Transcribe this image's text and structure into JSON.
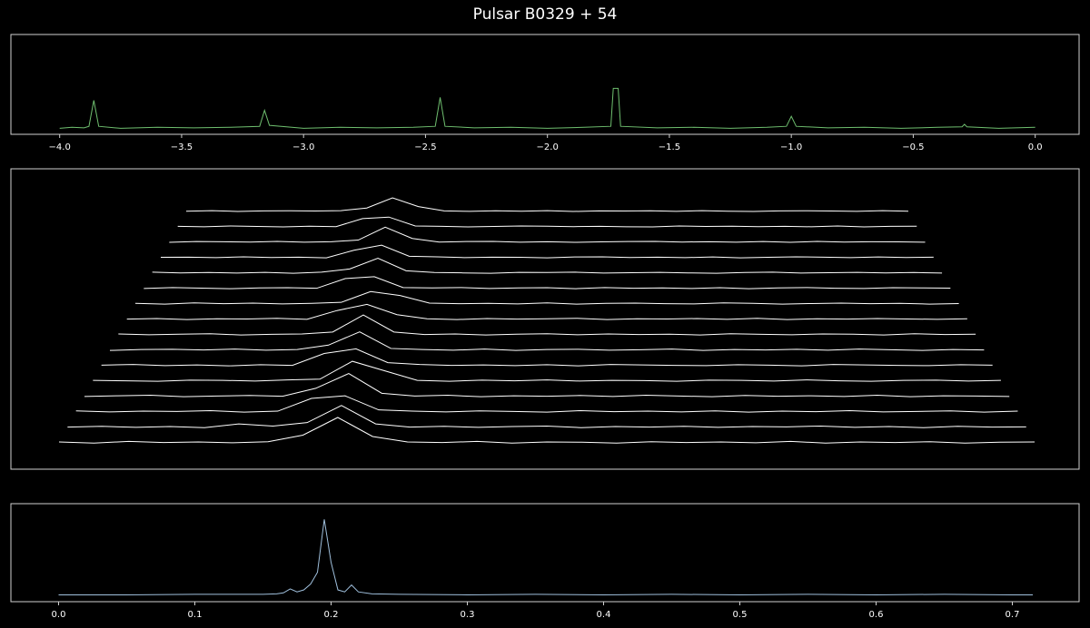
{
  "title": "Pulsar B0329 + 54",
  "chart_data": [
    {
      "type": "line",
      "color": "#6fbf6f",
      "x": [
        -4.0,
        -3.95,
        -3.9,
        -3.88,
        -3.86,
        -3.84,
        -3.75,
        -3.6,
        -3.45,
        -3.3,
        -3.18,
        -3.16,
        -3.14,
        -3.0,
        -2.85,
        -2.7,
        -2.55,
        -2.46,
        -2.44,
        -2.42,
        -2.3,
        -2.15,
        -2.0,
        -1.85,
        -1.74,
        -1.73,
        -1.71,
        -1.7,
        -1.55,
        -1.4,
        -1.25,
        -1.1,
        -1.02,
        -1.0,
        -0.98,
        -0.85,
        -0.7,
        -0.55,
        -0.4,
        -0.3,
        -0.29,
        -0.28,
        -0.15,
        0.0
      ],
      "values": [
        0.06,
        0.07,
        0.065,
        0.08,
        0.34,
        0.08,
        0.06,
        0.07,
        0.065,
        0.07,
        0.08,
        0.24,
        0.09,
        0.06,
        0.07,
        0.065,
        0.07,
        0.08,
        0.37,
        0.08,
        0.065,
        0.07,
        0.06,
        0.07,
        0.08,
        0.46,
        0.46,
        0.08,
        0.065,
        0.07,
        0.06,
        0.07,
        0.08,
        0.18,
        0.08,
        0.065,
        0.07,
        0.06,
        0.07,
        0.075,
        0.1,
        0.075,
        0.06,
        0.07
      ],
      "xlim": [
        -4.2,
        0.18
      ],
      "ylim": [
        0,
        1
      ],
      "xticks": [
        {
          "value": -4.0,
          "label": "−4.0"
        },
        {
          "value": -3.5,
          "label": "−3.5"
        },
        {
          "value": -3.0,
          "label": "−3.0"
        },
        {
          "value": -2.5,
          "label": "−2.5"
        },
        {
          "value": -2.0,
          "label": "−2.0"
        },
        {
          "value": -1.5,
          "label": "−1.5"
        },
        {
          "value": -1.0,
          "label": "−1.0"
        },
        {
          "value": -0.5,
          "label": "−0.5"
        },
        {
          "value": 0.0,
          "label": "0.0"
        }
      ]
    },
    {
      "type": "ridgeline",
      "color": "#ffffff",
      "xlim": [
        0,
        0.7
      ],
      "x": [
        0,
        0.025,
        0.05,
        0.075,
        0.1,
        0.125,
        0.15,
        0.175,
        0.2,
        0.225,
        0.25,
        0.275,
        0.3,
        0.325,
        0.35,
        0.375,
        0.4,
        0.425,
        0.45,
        0.475,
        0.5,
        0.525,
        0.55,
        0.575,
        0.6,
        0.625,
        0.65,
        0.675,
        0.7
      ],
      "series": [
        {
          "values": [
            0.1,
            0.06,
            0.12,
            0.08,
            0.1,
            0.07,
            0.11,
            0.35,
            1.0,
            0.3,
            0.1,
            0.08,
            0.12,
            0.06,
            0.1,
            0.09,
            0.06,
            0.11,
            0.08,
            0.1,
            0.07,
            0.12,
            0.06,
            0.1,
            0.08,
            0.11,
            0.06,
            0.09,
            0.1
          ]
        },
        {
          "values": [
            0.08,
            0.11,
            0.07,
            0.1,
            0.06,
            0.2,
            0.12,
            0.25,
            0.9,
            0.2,
            0.08,
            0.11,
            0.07,
            0.1,
            0.12,
            0.06,
            0.1,
            0.08,
            0.11,
            0.07,
            0.1,
            0.09,
            0.12,
            0.07,
            0.1,
            0.06,
            0.11,
            0.08,
            0.09
          ]
        },
        {
          "values": [
            0.11,
            0.07,
            0.1,
            0.09,
            0.12,
            0.06,
            0.1,
            0.6,
            0.7,
            0.15,
            0.1,
            0.07,
            0.11,
            0.09,
            0.06,
            0.12,
            0.08,
            0.1,
            0.07,
            0.11,
            0.06,
            0.1,
            0.08,
            0.12,
            0.07,
            0.09,
            0.11,
            0.06,
            0.1
          ]
        },
        {
          "values": [
            0.07,
            0.1,
            0.12,
            0.06,
            0.09,
            0.11,
            0.08,
            0.4,
            1.0,
            0.2,
            0.09,
            0.12,
            0.06,
            0.1,
            0.08,
            0.11,
            0.07,
            0.12,
            0.09,
            0.06,
            0.11,
            0.08,
            0.1,
            0.07,
            0.12,
            0.06,
            0.1,
            0.09,
            0.07
          ]
        },
        {
          "values": [
            0.1,
            0.08,
            0.06,
            0.11,
            0.1,
            0.07,
            0.12,
            0.15,
            0.9,
            0.5,
            0.1,
            0.06,
            0.11,
            0.08,
            0.12,
            0.07,
            0.1,
            0.09,
            0.06,
            0.11,
            0.1,
            0.07,
            0.12,
            0.08,
            0.06,
            0.1,
            0.11,
            0.07,
            0.1
          ]
        },
        {
          "values": [
            0.09,
            0.12,
            0.07,
            0.1,
            0.06,
            0.11,
            0.08,
            0.6,
            0.8,
            0.2,
            0.12,
            0.08,
            0.1,
            0.07,
            0.11,
            0.06,
            0.12,
            0.1,
            0.08,
            0.07,
            0.11,
            0.09,
            0.06,
            0.12,
            0.1,
            0.08,
            0.07,
            0.11,
            0.09
          ]
        },
        {
          "values": [
            0.06,
            0.1,
            0.11,
            0.08,
            0.12,
            0.07,
            0.1,
            0.3,
            0.9,
            0.15,
            0.1,
            0.07,
            0.12,
            0.06,
            0.1,
            0.11,
            0.07,
            0.09,
            0.12,
            0.06,
            0.1,
            0.08,
            0.11,
            0.07,
            0.12,
            0.09,
            0.06,
            0.1,
            0.08
          ]
        },
        {
          "values": [
            0.11,
            0.07,
            0.1,
            0.12,
            0.06,
            0.09,
            0.11,
            0.2,
            1.0,
            0.2,
            0.08,
            0.11,
            0.06,
            0.1,
            0.12,
            0.07,
            0.11,
            0.08,
            0.1,
            0.06,
            0.12,
            0.09,
            0.07,
            0.11,
            0.1,
            0.06,
            0.12,
            0.08,
            0.1
          ]
        },
        {
          "values": [
            0.08,
            0.11,
            0.06,
            0.1,
            0.09,
            0.12,
            0.07,
            0.5,
            0.8,
            0.3,
            0.1,
            0.06,
            0.11,
            0.08,
            0.1,
            0.12,
            0.06,
            0.1,
            0.09,
            0.11,
            0.07,
            0.12,
            0.06,
            0.1,
            0.08,
            0.11,
            0.09,
            0.07,
            0.1
          ]
        },
        {
          "values": [
            0.1,
            0.06,
            0.12,
            0.08,
            0.11,
            0.07,
            0.1,
            0.15,
            0.7,
            0.5,
            0.11,
            0.08,
            0.1,
            0.07,
            0.12,
            0.06,
            0.1,
            0.11,
            0.08,
            0.07,
            0.12,
            0.1,
            0.06,
            0.09,
            0.11,
            0.08,
            0.1,
            0.06,
            0.09
          ]
        },
        {
          "values": [
            0.07,
            0.12,
            0.09,
            0.06,
            0.1,
            0.11,
            0.08,
            0.6,
            0.7,
            0.12,
            0.1,
            0.12,
            0.07,
            0.1,
            0.11,
            0.06,
            0.12,
            0.08,
            0.1,
            0.07,
            0.11,
            0.06,
            0.1,
            0.12,
            0.08,
            0.07,
            0.11,
            0.1,
            0.09
          ]
        },
        {
          "values": [
            0.12,
            0.08,
            0.1,
            0.07,
            0.11,
            0.06,
            0.12,
            0.3,
            0.9,
            0.2,
            0.1,
            0.08,
            0.06,
            0.11,
            0.1,
            0.12,
            0.07,
            0.09,
            0.11,
            0.08,
            0.06,
            0.1,
            0.12,
            0.07,
            0.09,
            0.11,
            0.08,
            0.1,
            0.07
          ]
        },
        {
          "values": [
            0.09,
            0.1,
            0.07,
            0.12,
            0.08,
            0.1,
            0.06,
            0.5,
            0.8,
            0.15,
            0.12,
            0.07,
            0.1,
            0.09,
            0.06,
            0.11,
            0.12,
            0.08,
            0.1,
            0.07,
            0.11,
            0.06,
            0.09,
            0.12,
            0.1,
            0.07,
            0.11,
            0.08,
            0.1
          ]
        },
        {
          "values": [
            0.06,
            0.11,
            0.1,
            0.08,
            0.12,
            0.07,
            0.1,
            0.2,
            1.0,
            0.3,
            0.08,
            0.11,
            0.12,
            0.07,
            0.1,
            0.06,
            0.09,
            0.11,
            0.12,
            0.08,
            0.1,
            0.07,
            0.11,
            0.06,
            0.12,
            0.08,
            0.1,
            0.09,
            0.07
          ]
        },
        {
          "values": [
            0.1,
            0.07,
            0.12,
            0.09,
            0.06,
            0.11,
            0.08,
            0.6,
            0.7,
            0.12,
            0.1,
            0.06,
            0.09,
            0.12,
            0.11,
            0.08,
            0.1,
            0.07,
            0.06,
            0.12,
            0.09,
            0.11,
            0.08,
            0.1,
            0.07,
            0.12,
            0.06,
            0.1,
            0.11
          ]
        },
        {
          "values": [
            0.08,
            0.12,
            0.06,
            0.1,
            0.11,
            0.09,
            0.12,
            0.3,
            1.0,
            0.4,
            0.1,
            0.07,
            0.11,
            0.08,
            0.12,
            0.06,
            0.1,
            0.09,
            0.11,
            0.07,
            0.12,
            0.08,
            0.06,
            0.1,
            0.11,
            0.09,
            0.07,
            0.12,
            0.08
          ]
        }
      ]
    },
    {
      "type": "line",
      "color": "#9fbfdc",
      "x": [
        0,
        0.05,
        0.1,
        0.15,
        0.16,
        0.165,
        0.17,
        0.175,
        0.18,
        0.185,
        0.19,
        0.195,
        0.2,
        0.205,
        0.21,
        0.215,
        0.22,
        0.23,
        0.25,
        0.3,
        0.35,
        0.4,
        0.45,
        0.5,
        0.55,
        0.6,
        0.65,
        0.7,
        0.715
      ],
      "values": [
        0.07,
        0.07,
        0.075,
        0.075,
        0.08,
        0.09,
        0.13,
        0.1,
        0.12,
        0.18,
        0.3,
        0.84,
        0.4,
        0.12,
        0.1,
        0.17,
        0.1,
        0.08,
        0.075,
        0.07,
        0.075,
        0.07,
        0.075,
        0.07,
        0.075,
        0.07,
        0.075,
        0.07,
        0.07
      ],
      "xlim": [
        -0.035,
        0.749
      ],
      "ylim": [
        0,
        1
      ],
      "xticks": [
        {
          "value": 0,
          "label": "0.0"
        },
        0.1,
        0.2,
        0.3,
        0.4,
        0.5,
        0.6,
        0.7
      ]
    }
  ]
}
